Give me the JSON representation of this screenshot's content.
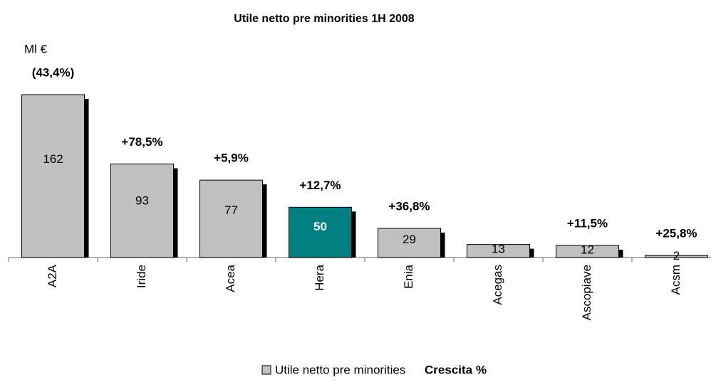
{
  "chart_data": {
    "type": "bar",
    "title": "Utile netto pre minorities 1H 2008",
    "unit_label": "Ml €",
    "categories": [
      "A2A",
      "Iride",
      "Acea",
      "Hera",
      "Enia",
      "Acegas",
      "Ascopiave",
      "Acsm"
    ],
    "series": [
      {
        "name": "Utile netto pre minorities",
        "color": "#c0c0c0",
        "values": [
          162,
          93,
          77,
          50,
          29,
          13,
          12,
          2
        ],
        "colors": [
          "#c0c0c0",
          "#c0c0c0",
          "#c0c0c0",
          "#008080",
          "#c0c0c0",
          "#c0c0c0",
          "#c0c0c0",
          "#c0c0c0"
        ]
      }
    ],
    "growth_name": "Crescita %",
    "growth_labels": [
      "(43,4%)",
      "+78,5%",
      "+5,9%",
      "+12,7%",
      "+36,8%",
      null,
      "+11,5%",
      "+25,8%"
    ]
  }
}
